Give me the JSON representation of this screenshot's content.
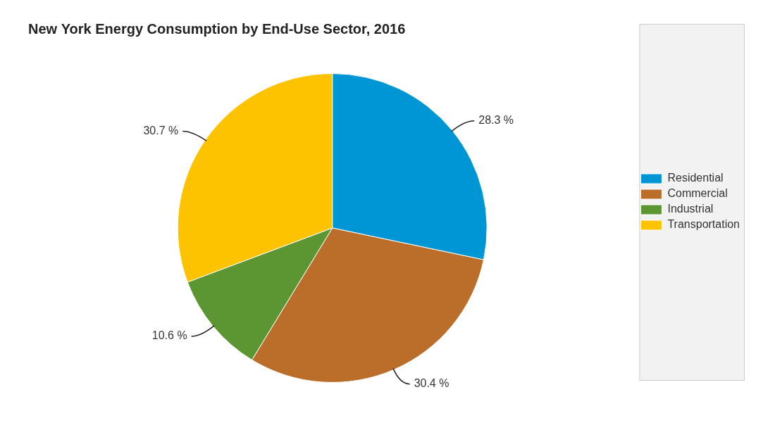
{
  "chart_data": {
    "type": "pie",
    "title": "New York Energy Consumption by End-Use Sector, 2016",
    "categories": [
      "Residential",
      "Commercial",
      "Industrial",
      "Transportation"
    ],
    "values": [
      28.3,
      30.4,
      10.6,
      30.7
    ],
    "value_labels": [
      "28.3 %",
      "30.4 %",
      "10.6 %",
      "30.7 %"
    ],
    "colors": [
      "#0096d6",
      "#bb6d2a",
      "#5b9632",
      "#fdc300"
    ],
    "legend": "right",
    "data_labels": true
  }
}
